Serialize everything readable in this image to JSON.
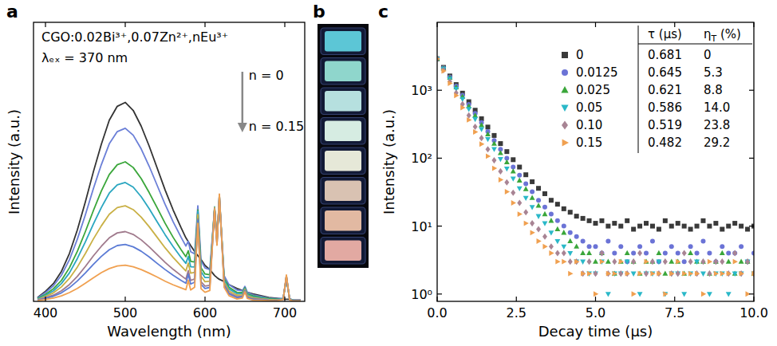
{
  "chart_data": [
    {
      "type": "line",
      "title": "a",
      "annotations": [
        "CGO:0.02Bi³⁺,0.07Zn²⁺,nEu³⁺",
        "λₑₓ = 370 nm",
        "n = 0",
        "n = 0.15"
      ],
      "xlabel": "Wavelength (nm)",
      "ylabel": "Intensity (a.u.)",
      "xlim": [
        385,
        725
      ],
      "xticks": [
        400,
        500,
        600,
        700
      ],
      "ylim": [
        0,
        108
      ],
      "tick_labels": "x",
      "x": [
        390,
        400,
        410,
        420,
        430,
        440,
        450,
        460,
        470,
        480,
        490,
        500,
        510,
        520,
        530,
        540,
        550,
        560,
        570,
        576,
        579,
        582,
        587,
        591,
        595,
        600,
        606,
        612,
        615,
        618,
        624,
        630,
        640,
        647,
        650,
        653,
        660,
        670,
        680,
        690,
        698,
        702,
        706,
        710,
        720
      ],
      "series": [
        {
          "color": "#333333",
          "line_style": "solid",
          "values": [
            1.5,
            3.9,
            6.9,
            11.6,
            18.5,
            27.7,
            38.5,
            50.1,
            60.8,
            70.1,
            75.5,
            77.0,
            73.9,
            67.8,
            60.1,
            51.6,
            43.1,
            35.4,
            28.5,
            24.6,
            23.1,
            21.6,
            19.3,
            17.7,
            16.2,
            13.9,
            12.3,
            10.0,
            9.2,
            8.5,
            7.7,
            6.5,
            5.0,
            4.2,
            3.9,
            3.5,
            2.9,
            2.2,
            1.5,
            1.2,
            0.9,
            0.8,
            0.8,
            0.6,
            0.5
          ]
        },
        {
          "color": "#6b7fd7",
          "line_style": "solid",
          "values": [
            1.3,
            3.4,
            6.0,
            10.1,
            16.1,
            24.1,
            33.5,
            43.6,
            52.9,
            61.0,
            65.7,
            67.0,
            64.3,
            59.0,
            52.3,
            44.9,
            37.5,
            30.8,
            24.8,
            21.4,
            23.3,
            19.2,
            18.4,
            37.0,
            15.7,
            12.9,
            12.3,
            35.9,
            24.0,
            39.4,
            9.9,
            6.5,
            4.4,
            4.1,
            5.8,
            3.5,
            2.5,
            1.9,
            1.3,
            1.0,
            1.2,
            8.7,
            1.1,
            0.5,
            0.4
          ]
        },
        {
          "color": "#3aa63a",
          "line_style": "solid",
          "values": [
            1.1,
            2.7,
            4.9,
            8.1,
            13.0,
            19.4,
            27.0,
            35.1,
            42.7,
            49.1,
            52.9,
            54.0,
            51.8,
            47.5,
            42.1,
            36.2,
            30.2,
            24.8,
            20.0,
            17.3,
            19.6,
            15.5,
            15.2,
            35.4,
            13.0,
            10.6,
            10.3,
            35.9,
            23.5,
            39.9,
            8.8,
            5.5,
            3.5,
            3.4,
            5.3,
            2.9,
            2.1,
            1.5,
            1.1,
            0.8,
            1.0,
            9.1,
            0.9,
            0.4,
            0.3
          ]
        },
        {
          "color": "#2aa6c0",
          "line_style": "solid",
          "values": [
            0.9,
            2.3,
            4.1,
            6.9,
            11.0,
            16.6,
            23.0,
            29.9,
            36.3,
            41.9,
            45.1,
            46.0,
            44.2,
            40.5,
            35.9,
            30.8,
            25.8,
            21.2,
            17.0,
            14.7,
            17.4,
            13.4,
            13.3,
            34.9,
            11.5,
            9.2,
            9.2,
            36.6,
            23.5,
            41.1,
            8.2,
            4.8,
            3.0,
            3.0,
            5.0,
            2.6,
            1.7,
            1.3,
            0.9,
            0.7,
            1.1,
            9.5,
            1.0,
            0.4,
            0.3
          ]
        },
        {
          "color": "#c9b045",
          "line_style": "solid",
          "values": [
            0.7,
            1.9,
            3.3,
            5.6,
            8.9,
            13.3,
            18.5,
            24.1,
            29.2,
            33.7,
            36.3,
            37.0,
            35.5,
            32.6,
            28.9,
            24.8,
            20.7,
            17.0,
            13.7,
            11.8,
            14.8,
            10.9,
            11.2,
            33.6,
            9.7,
            7.6,
            7.8,
            36.4,
            23.0,
            41.3,
            7.4,
            4.0,
            2.4,
            2.5,
            4.7,
            2.2,
            1.4,
            1.0,
            0.7,
            0.6,
            0.9,
            9.7,
            0.9,
            0.3,
            0.2
          ]
        },
        {
          "color": "#a07a8c",
          "line_style": "solid",
          "values": [
            0.5,
            1.4,
            2.4,
            4.1,
            6.5,
            9.7,
            13.5,
            17.6,
            21.3,
            24.6,
            26.5,
            27.0,
            25.9,
            23.8,
            21.1,
            18.1,
            15.1,
            12.4,
            10.0,
            8.6,
            11.9,
            8.1,
            8.7,
            31.9,
            7.6,
            5.9,
            6.2,
            35.8,
            22.2,
            41.0,
            6.5,
            3.3,
            1.8,
            2.0,
            4.3,
            1.7,
            1.0,
            0.8,
            0.5,
            0.4,
            0.8,
            9.8,
            0.8,
            0.2,
            0.2
          ]
        },
        {
          "color": "#5b7bd5",
          "line_style": "solid",
          "values": [
            0.4,
            1.1,
            2.0,
            3.3,
            5.3,
            7.9,
            11.0,
            14.3,
            17.4,
            20.0,
            21.6,
            22.0,
            21.1,
            19.4,
            17.2,
            14.7,
            12.3,
            10.1,
            8.1,
            7.0,
            10.5,
            6.7,
            7.4,
            31.3,
            6.5,
            5.0,
            5.4,
            35.9,
            22.0,
            41.2,
            6.1,
            2.9,
            1.4,
            1.7,
            4.0,
            1.5,
            0.8,
            0.6,
            0.4,
            0.3,
            0.8,
            9.9,
            0.7,
            0.2,
            0.1
          ]
        },
        {
          "color": "#f0a050",
          "line_style": "solid",
          "values": [
            0.3,
            0.7,
            1.3,
            2.1,
            3.4,
            5.0,
            7.0,
            9.1,
            11.1,
            12.7,
            13.7,
            14.0,
            13.4,
            12.3,
            10.9,
            9.4,
            7.8,
            6.4,
            5.2,
            4.5,
            8.2,
            4.4,
            5.5,
            30.2,
            4.9,
            3.5,
            4.2,
            35.8,
            21.7,
            41.5,
            5.4,
            2.2,
            0.9,
            1.3,
            3.7,
            1.1,
            0.5,
            0.4,
            0.3,
            0.2,
            0.7,
            10.2,
            0.6,
            0.1,
            0.1
          ]
        }
      ]
    },
    {
      "type": "image",
      "title": "b",
      "colors": [
        "#5cc6d6",
        "#8fd6cc",
        "#b6e0df",
        "#d6ece2",
        "#e6e8d8",
        "#d9c2b2",
        "#e2b9a2",
        "#e2a9a2"
      ]
    },
    {
      "type": "scatter",
      "title": "c",
      "xlabel": "Decay time (μs)",
      "ylabel": "Intensity (a.u.)",
      "log": "y",
      "legend": "upper right",
      "table_headers": [
        "τ (μs)",
        "ηT (%)"
      ],
      "xlim": [
        0,
        10
      ],
      "ylim": [
        0.78,
        10000
      ],
      "xticks": [
        {
          "value": 0,
          "label": "0.0"
        },
        2.5,
        {
          "value": 5,
          "label": "5.0"
        },
        7.5,
        {
          "value": 10,
          "label": "10.0"
        }
      ],
      "yticks": [
        {
          "value": 1,
          "label": "10⁰"
        },
        {
          "value": 10,
          "label": "10¹"
        },
        {
          "value": 100,
          "label": "10²"
        },
        {
          "value": 1000,
          "label": "10³"
        }
      ],
      "x": [
        0,
        0.2,
        0.4,
        0.6,
        0.8,
        1.0,
        1.2,
        1.4,
        1.6,
        1.8,
        2.0,
        2.2,
        2.4,
        2.6,
        2.8,
        3.0,
        3.2,
        3.4,
        3.6,
        3.8,
        4.0,
        4.2,
        4.4,
        4.6,
        4.8,
        5.0,
        5.2,
        5.4,
        5.6,
        5.8,
        6.0,
        6.2,
        6.4,
        6.6,
        6.8,
        7.0,
        7.2,
        7.4,
        7.6,
        7.8,
        8.0,
        8.2,
        8.4,
        8.6,
        8.8,
        9.0,
        9.2,
        9.4,
        9.6,
        9.8,
        10.0
      ],
      "series": [
        {
          "name": "0",
          "color": "#3a3a3a",
          "marker": "square",
          "tau": 0.681,
          "eta": 0,
          "values": [
            2910,
            2172,
            1622,
            1212,
            906,
            678,
            508,
            381,
            287,
            216,
            164,
            125,
            95,
            74,
            57,
            45,
            36,
            30,
            24,
            21,
            18,
            16,
            14,
            13,
            12,
            11,
            12,
            10,
            11,
            10,
            12,
            9,
            10,
            11,
            10,
            9,
            12,
            10,
            11,
            10,
            9,
            10,
            12,
            10,
            11,
            9,
            10,
            11,
            10,
            9,
            10
          ]
        },
        {
          "name": "0.0125",
          "color": "#6b73d6",
          "marker": "circle",
          "tau": 0.645,
          "eta": 5.3,
          "values": [
            2904,
            2131,
            1564,
            1148,
            843,
            619,
            455,
            335,
            247,
            182,
            135,
            100,
            74,
            56,
            42,
            32,
            24,
            19,
            15,
            12,
            10,
            8,
            7,
            6,
            5,
            5,
            4,
            6,
            4,
            5,
            3,
            4,
            5,
            4,
            6,
            3,
            4,
            5,
            4,
            3,
            5,
            4,
            6,
            4,
            3,
            5,
            4,
            4,
            5,
            3,
            4
          ]
        },
        {
          "name": "0.025",
          "color": "#3aa63a",
          "marker": "triangle-up",
          "tau": 0.621,
          "eta": 8.8,
          "values": [
            2903,
            2105,
            1526,
            1107,
            803,
            583,
            423,
            307,
            224,
            163,
            119,
            87,
            64,
            47,
            35,
            26,
            20,
            15,
            12,
            9,
            8,
            6,
            5,
            4,
            4,
            3,
            4,
            3,
            2,
            3,
            4,
            3,
            2,
            3,
            3,
            4,
            2,
            3,
            3,
            2,
            4,
            3,
            3,
            2,
            3,
            4,
            3,
            2,
            3,
            3,
            2
          ]
        },
        {
          "name": "0.05",
          "color": "#2ab8c8",
          "marker": "triangle-down",
          "tau": 0.586,
          "eta": {
            "value": 14.0,
            "label": "14.0"
          },
          "values": [
            2902,
            2063,
            1467,
            1044,
            742,
            528,
            376,
            268,
            191,
            136,
            97,
            70,
            50,
            36,
            26,
            19,
            14,
            11,
            8,
            6,
            5,
            4,
            3,
            3,
            2,
            2,
            3,
            1,
            2,
            2,
            3,
            2,
            1,
            2,
            2,
            3,
            1,
            2,
            2,
            1,
            2,
            3,
            2,
            1,
            2,
            2,
            1,
            2,
            2,
            3,
            2
          ]
        },
        {
          "name": "0.10",
          "color": "#a88494",
          "marker": "diamond",
          "tau": 0.519,
          "eta": 23.8,
          "values": [
            2903,
            1975,
            1345,
            915,
            624,
            425,
            290,
            198,
            135,
            93,
            64,
            44,
            31,
            22,
            16,
            11,
            9,
            7,
            5,
            4,
            4,
            3,
            3,
            2,
            3,
            2,
            4,
            2,
            3,
            2,
            2,
            3,
            4,
            2,
            3,
            2,
            3,
            2,
            2,
            4,
            3,
            2,
            3,
            2,
            3,
            3,
            2,
            4,
            2,
            3,
            2
          ]
        },
        {
          "name": "0.15",
          "color": "#f0a050",
          "marker": "triangle-right",
          "tau": 0.482,
          "eta": 29.2,
          "values": [
            2902,
            1917,
            1267,
            837,
            554,
            366,
            243,
            161,
            107,
            71,
            48,
            32,
            22,
            15,
            11,
            8,
            6,
            5,
            4,
            3,
            3,
            2,
            3,
            2,
            2,
            1,
            3,
            2,
            2,
            3,
            2,
            1,
            2,
            3,
            2,
            2,
            1,
            2,
            3,
            2,
            2,
            2,
            1,
            3,
            2,
            2,
            2,
            3,
            2,
            1,
            2
          ]
        }
      ]
    }
  ]
}
